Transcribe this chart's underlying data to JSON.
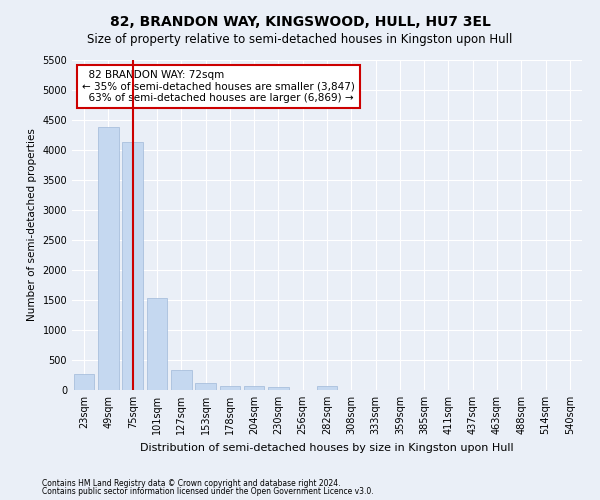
{
  "title": "82, BRANDON WAY, KINGSWOOD, HULL, HU7 3EL",
  "subtitle": "Size of property relative to semi-detached houses in Kingston upon Hull",
  "xlabel": "Distribution of semi-detached houses by size in Kingston upon Hull",
  "ylabel": "Number of semi-detached properties",
  "categories": [
    "23sqm",
    "49sqm",
    "75sqm",
    "101sqm",
    "127sqm",
    "153sqm",
    "178sqm",
    "204sqm",
    "230sqm",
    "256sqm",
    "282sqm",
    "308sqm",
    "333sqm",
    "359sqm",
    "385sqm",
    "411sqm",
    "437sqm",
    "463sqm",
    "488sqm",
    "514sqm",
    "540sqm"
  ],
  "values": [
    260,
    4380,
    4130,
    1530,
    330,
    110,
    70,
    60,
    55,
    0,
    70,
    0,
    0,
    0,
    0,
    0,
    0,
    0,
    0,
    0,
    0
  ],
  "bar_color": "#c5d8f0",
  "bar_edge_color": "#a0b8d8",
  "property_line_x": 2.0,
  "property_label": "82 BRANDON WAY: 72sqm",
  "smaller_pct": "35%",
  "smaller_count": "3,847",
  "larger_pct": "63%",
  "larger_count": "6,869",
  "annotation_box_color": "#ffffff",
  "annotation_box_edge": "#cc0000",
  "line_color": "#cc0000",
  "ylim": [
    0,
    5500
  ],
  "yticks": [
    0,
    500,
    1000,
    1500,
    2000,
    2500,
    3000,
    3500,
    4000,
    4500,
    5000,
    5500
  ],
  "footnote1": "Contains HM Land Registry data © Crown copyright and database right 2024.",
  "footnote2": "Contains public sector information licensed under the Open Government Licence v3.0.",
  "bg_color": "#eaeff7",
  "plot_bg_color": "#eaeff7",
  "title_fontsize": 10,
  "subtitle_fontsize": 8.5,
  "axis_label_fontsize": 8,
  "tick_fontsize": 7,
  "ylabel_fontsize": 7.5
}
